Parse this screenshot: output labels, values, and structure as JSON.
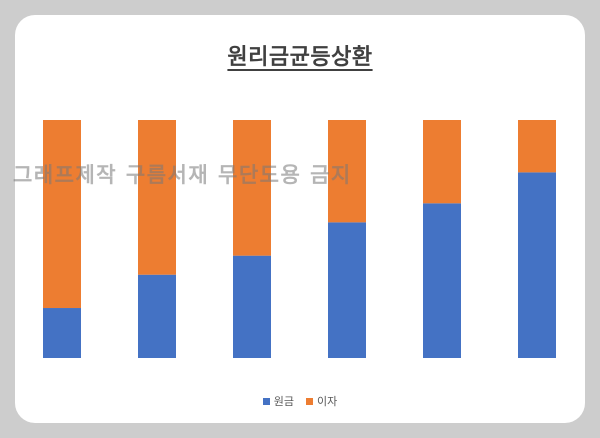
{
  "watermark": "그래프제작 구름서재 무단도용 금지",
  "colors": {
    "principal": "#4472c4",
    "interest": "#ed7d31"
  },
  "chart_data": {
    "type": "bar",
    "stacked": "percent",
    "title": "원리금균등상환",
    "categories": [
      "",
      "",
      "",
      "",
      "",
      ""
    ],
    "series": [
      {
        "name": "원금",
        "values": [
          0.21,
          0.35,
          0.43,
          0.57,
          0.65,
          0.78
        ]
      },
      {
        "name": "이자",
        "values": [
          0.79,
          0.65,
          0.57,
          0.43,
          0.35,
          0.22
        ]
      }
    ],
    "ylim": [
      0,
      1
    ],
    "grid": false,
    "legend": "bottom"
  }
}
